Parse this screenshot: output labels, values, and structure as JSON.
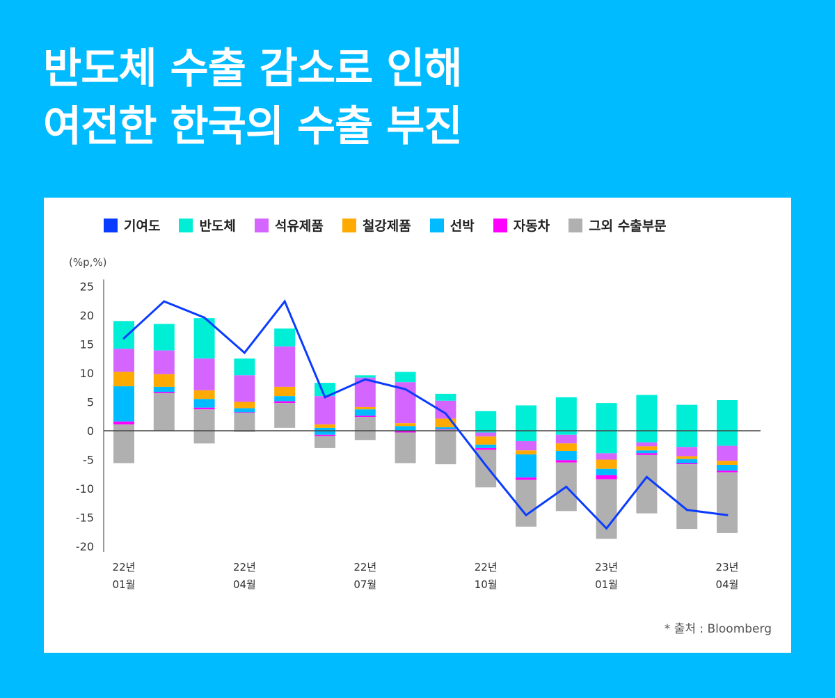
{
  "title": {
    "line1": "반도체 수출 감소로 인해",
    "line2": "여전한 한국의 수출 부진"
  },
  "source": "* 출처 : Bloomberg",
  "chart_data": {
    "type": "bar",
    "subtype": "stacked-bar-with-line",
    "unit_label": "(%p,%)",
    "ylim": [
      -20,
      25
    ],
    "yticks": [
      25,
      20,
      15,
      10,
      5,
      0,
      -5,
      -10,
      -15,
      -20
    ],
    "grid": false,
    "legend_position": "top",
    "legend": [
      {
        "name": "기여도",
        "color": "#0A3CFF",
        "kind": "line"
      },
      {
        "name": "반도체",
        "color": "#00EED6",
        "kind": "bar"
      },
      {
        "name": "석유제품",
        "color": "#D466FF",
        "kind": "bar"
      },
      {
        "name": "철강제품",
        "color": "#FFAA00",
        "kind": "bar"
      },
      {
        "name": "선박",
        "color": "#00BBFF",
        "kind": "bar"
      },
      {
        "name": "자동차",
        "color": "#FF00FF",
        "kind": "bar"
      },
      {
        "name": "그외 수출부문",
        "color": "#B0B0B0",
        "kind": "bar"
      }
    ],
    "categories": [
      "22-01",
      "22-02",
      "22-03",
      "22-04",
      "22-05",
      "22-06",
      "22-07",
      "22-08",
      "22-09",
      "22-10",
      "22-11",
      "22-12",
      "23-01",
      "23-02",
      "23-03",
      "23-04"
    ],
    "x_tick_labels": [
      {
        "index": 0,
        "year": "22년",
        "month": "01월"
      },
      {
        "index": 3,
        "year": "22년",
        "month": "04월"
      },
      {
        "index": 6,
        "year": "22년",
        "month": "07월"
      },
      {
        "index": 9,
        "year": "22년",
        "month": "10월"
      },
      {
        "index": 12,
        "year": "23년",
        "month": "01월"
      },
      {
        "index": 15,
        "year": "23년",
        "month": "04월"
      }
    ],
    "bar_series_order_top_to_bottom": [
      "반도체",
      "석유제품",
      "철강제품",
      "선박",
      "자동차",
      "그외 수출부문"
    ],
    "bar_boundaries_top_to_bottom": [
      [
        19.0,
        14.2,
        10.2,
        7.7,
        1.6,
        1.1,
        -5.6
      ],
      [
        18.5,
        13.9,
        9.8,
        7.6,
        6.7,
        6.5,
        0.0
      ],
      [
        19.5,
        12.5,
        7.0,
        5.5,
        4.0,
        3.7,
        -2.2
      ],
      [
        12.5,
        9.6,
        5.0,
        3.9,
        3.2,
        3.1,
        -0.2
      ],
      [
        17.7,
        14.6,
        7.6,
        6.0,
        5.1,
        4.8,
        0.5
      ],
      [
        8.3,
        6.0,
        1.1,
        0.5,
        -0.7,
        -0.9,
        -3.0
      ],
      [
        9.6,
        9.2,
        4.1,
        3.7,
        2.6,
        2.4,
        -1.6
      ],
      [
        10.2,
        8.4,
        1.3,
        0.8,
        0.0,
        -0.3,
        -5.6
      ],
      [
        6.4,
        5.2,
        2.1,
        0.6,
        0.3,
        0.2,
        -5.8
      ],
      [
        3.4,
        -0.3,
        -1.0,
        -2.4,
        -3.0,
        -3.3,
        -9.8
      ],
      [
        4.4,
        -1.8,
        -3.4,
        -4.1,
        -8.1,
        -8.5,
        -16.6
      ],
      [
        5.8,
        -0.7,
        -2.2,
        -3.5,
        -5.1,
        -5.5,
        -13.9
      ],
      [
        4.8,
        -3.9,
        -5.0,
        -6.6,
        -7.7,
        -8.4,
        -18.7
      ],
      [
        6.2,
        -2.0,
        -2.7,
        -3.4,
        -3.9,
        -4.2,
        -14.3
      ],
      [
        4.5,
        -2.8,
        -4.4,
        -4.9,
        -5.6,
        -5.8,
        -17.0
      ],
      [
        5.3,
        -2.6,
        -5.2,
        -5.9,
        -6.9,
        -7.2,
        -17.7
      ]
    ],
    "line_series": {
      "name": "기여도",
      "values": [
        16.0,
        22.4,
        19.6,
        13.5,
        22.4,
        5.8,
        8.9,
        7.2,
        3.0,
        -6.0,
        -14.6,
        -9.7,
        -16.9,
        -8.0,
        -13.7,
        -14.6
      ]
    }
  }
}
